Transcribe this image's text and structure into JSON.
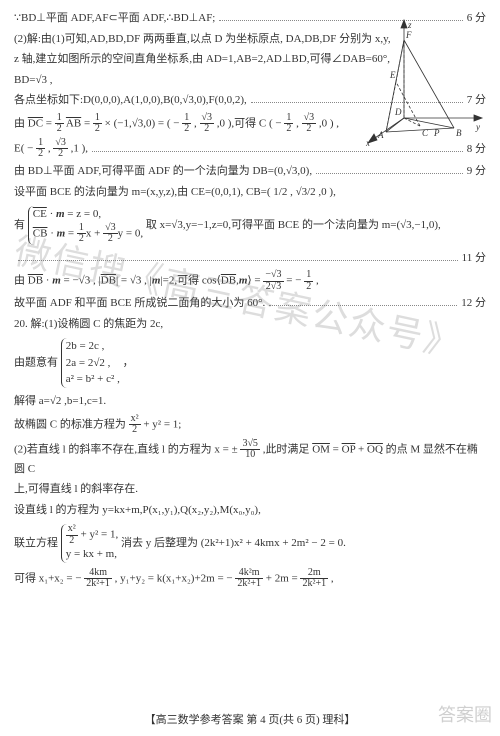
{
  "lines": [
    {
      "t": "score",
      "c": "∵BD⊥平面 ADF,AF⊂平面 ADF,∴BD⊥AF;",
      "s": "6 分"
    },
    {
      "t": "plain",
      "c": "(2)解:由(1)可知,AD,BD,DF 两两垂直,以点 D 为坐标原点, DA,DB,DF 分别为 x,y,"
    },
    {
      "t": "plain",
      "c": "z 轴,建立如图所示的空间直角坐标系,由 AD=1,AB=2,AD⊥BD,可得∠DAB=60°,"
    },
    {
      "t": "plain",
      "c": "BD=√3 ,"
    },
    {
      "t": "score",
      "c": "各点坐标如下:D(0,0,0),A(1,0,0),B(0,√3,0),F(0,0,2),",
      "s": "7 分"
    },
    {
      "t": "dc_line"
    },
    {
      "t": "e_line"
    },
    {
      "t": "score",
      "c": "由 BD⊥平面 ADF,可得平面 ADF 的一个法向量为 DB=(0,√3,0),",
      "s": "9 分"
    },
    {
      "t": "plain",
      "c": "设平面 BCE 的法向量为 m=(x,y,z),由 CE=(0,0,1), CB=( 1/2 , √3/2 ,0 ),"
    },
    {
      "t": "brace_m"
    },
    {
      "t": "score",
      "c": "",
      "s": "11 分"
    },
    {
      "t": "db_line"
    },
    {
      "t": "score",
      "c": "故平面 ADF 和平面 BCE 所成锐二面角的大小为 60°.",
      "s": "12 分"
    },
    {
      "t": "plain",
      "c": "20. 解:(1)设椭圆 C 的焦距为 2c,"
    },
    {
      "t": "brace_ellipse"
    },
    {
      "t": "plain",
      "c": "解得 a=√2 ,b=1,c=1."
    },
    {
      "t": "ellipse_eq"
    },
    {
      "t": "om_line"
    },
    {
      "t": "plain",
      "c": "上,可得直线 l 的斜率存在."
    },
    {
      "t": "plain",
      "c": "设直线 l 的方程为 y=kx+m,P(x₁,y₁),Q(x₂,y₂),M(x₀,y₀),"
    },
    {
      "t": "brace_line"
    },
    {
      "t": "x12_line"
    }
  ],
  "dc_text": {
    "pre": "由 ",
    "dc": "DC",
    "eq": " = ",
    "half": "1/2",
    "ab": "AB",
    "times": " = ",
    "half2": "1/2",
    "vec": " × (−1,√3,0) = ",
    "res": "( − 1/2 , √3/2 ,0 )",
    "tail": ",可得 C ( − 1/2 , √3/2 ,0 ) ,"
  },
  "e_text": {
    "c": "E( − 1/2 , √3/2 ,1 ),",
    "s": "8 分"
  },
  "brace_m_rows": [
    "CE · m = z = 0,",
    "CB · m = 1/2 x + √3/2 y = 0,"
  ],
  "brace_m_tail": "  取 x=√3,y=−1,z=0,可得平面 BCE 的一个法向量为 m=(√3,−1,0),",
  "db_text": {
    "pre": "由 DB · m = −√3 , |DB| = √3 , |m|=2,可得 cos⟨DB,m⟩ = ",
    "frac_num": "−√3",
    "frac_den": "2√3",
    "eq": " = − 1/2 ,"
  },
  "brace_ellipse_rows": [
    "2b = 2c ,",
    "2a = 2√2 ,",
    "a² = b² + c² ,"
  ],
  "brace_ellipse_pre": "由题意有 ",
  "ellipse_eq": {
    "pre": "故椭圆 C 的标准方程为 ",
    "num": "x²",
    "den": "2",
    "tail": " + y² = 1;"
  },
  "om_text": {
    "pre": "(2)若直线 l 的斜率不存在,直线 l 的方程为 x = ± ",
    "num": "3√5",
    "den": "10",
    "tail": " ,此时满足 OM = OP + OQ 的点 M 显然不在椭圆 C"
  },
  "brace_line_rows": [
    "x²/2 + y² = 1,",
    "y = kx + m,"
  ],
  "brace_line_pre": "联立方程 ",
  "brace_line_tail": "  消去 y 后整理为 (2k²+1)x² + 4kmx + 2m² − 2 = 0.",
  "x12_text": {
    "pre": "可得 x₁+x₂ = − ",
    "n1": "4km",
    "d1": "2k²+1",
    "mid": " , y₁+y₂ = k(x₁+x₂)+2m = − ",
    "n2": "4k²m",
    "d2": "2k²+1",
    "mid2": " + 2m = ",
    "n3": "2m",
    "d3": "2k²+1",
    "tail": " ,"
  },
  "footer": "【高三数学参考答案  第 4 页(共 6 页)  理科】",
  "watermark": "微信搜《高三答案公众号》",
  "watermark2": "答案圈",
  "diagram": {
    "labels": {
      "z": "z",
      "x": "x",
      "y": "y",
      "A": "A",
      "B": "B",
      "D": "D",
      "F": "F",
      "E": "E",
      "C": "C",
      "P": "P"
    },
    "stroke": "#333333",
    "dash": "3,2"
  }
}
